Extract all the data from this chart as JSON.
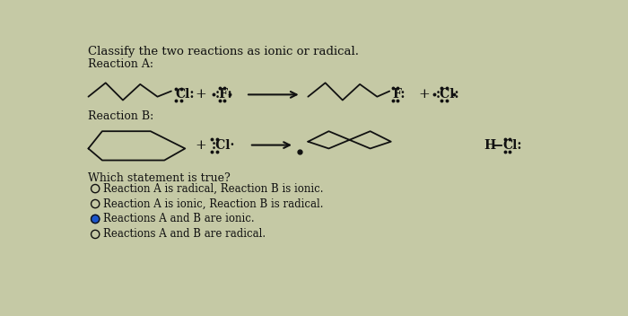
{
  "title": "Classify the two reactions as ionic or radical.",
  "bg_color": "#c5c9a5",
  "text_color": "#111111",
  "reaction_a_label": "Reaction A:",
  "reaction_b_label": "Reaction B:",
  "question": "Which statement is true?",
  "options": [
    "Reaction A is radical, Reaction B is ionic.",
    "Reaction A is ionic, Reaction B is radical.",
    "Reactions A and B are ionic.",
    "Reactions A and B are radical."
  ],
  "selected_option": 2,
  "font_size_title": 9.5,
  "font_size_label": 9,
  "font_size_chem": 9,
  "font_size_options": 8.5,
  "arrow_color": "#111111",
  "selected_color": "#1a55cc"
}
